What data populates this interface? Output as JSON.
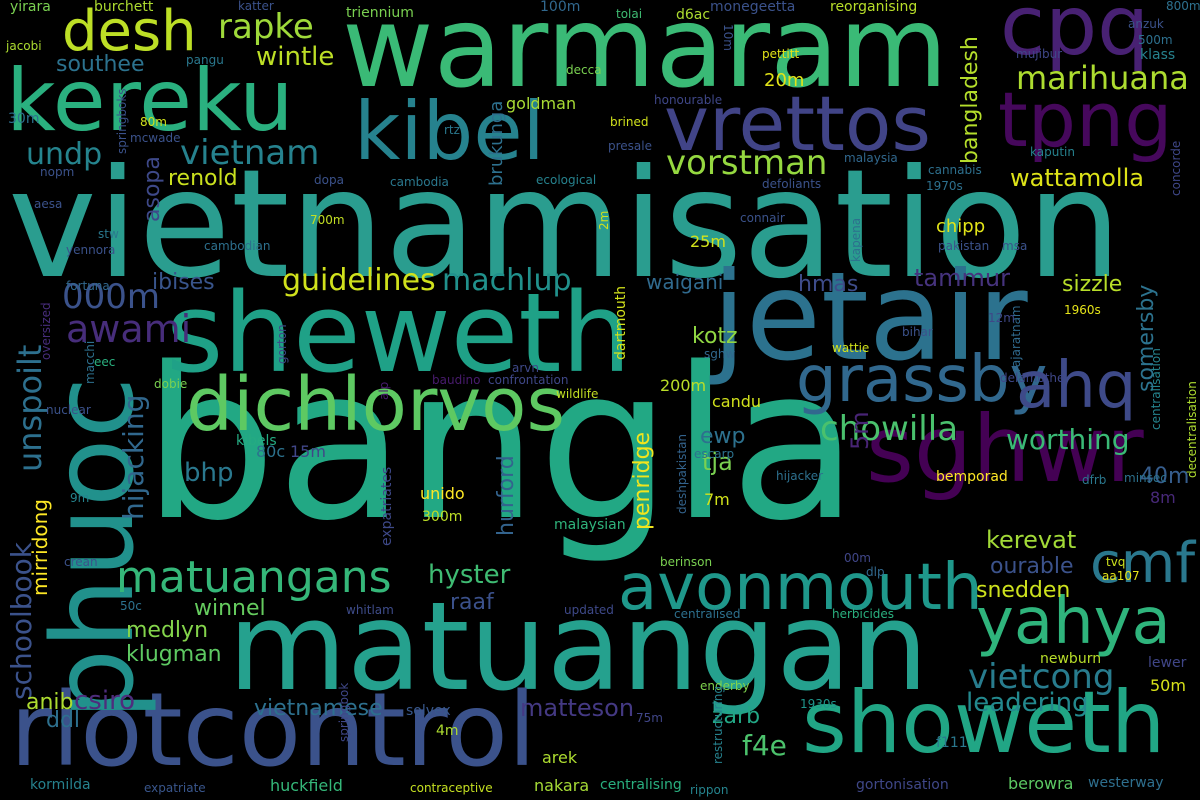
{
  "words": [
    {
      "text": "bangla",
      "color": "#22a884"
    },
    {
      "text": "vietnamisation",
      "color": "#2a9d8f"
    },
    {
      "text": "matuangan",
      "color": "#25a18e"
    },
    {
      "text": "warmaram",
      "color": "#3aba76"
    },
    {
      "text": "sheweth",
      "color": "#1fa187"
    },
    {
      "text": "jetair",
      "color": "#2c728e"
    },
    {
      "text": "riotcontrol",
      "color": "#3b528b"
    },
    {
      "text": "phuoc",
      "color": "#21918c"
    },
    {
      "text": "kereku",
      "color": "#2ab07f"
    },
    {
      "text": "showeth",
      "color": "#21a685"
    },
    {
      "text": "dichlorvos",
      "color": "#5ec962"
    },
    {
      "text": "sghwr",
      "color": "#440154"
    },
    {
      "text": "cpq",
      "color": "#482173"
    },
    {
      "text": "tpng",
      "color": "#46085c"
    },
    {
      "text": "kibel",
      "color": "#26828e"
    },
    {
      "text": "vrettos",
      "color": "#414487"
    },
    {
      "text": "yahya",
      "color": "#2fb47c"
    },
    {
      "text": "avonmouth",
      "color": "#1f988b"
    },
    {
      "text": "grassby",
      "color": "#31688e"
    },
    {
      "text": "ahq",
      "color": "#3e4a89"
    },
    {
      "text": "desh",
      "color": "#bddf26"
    },
    {
      "text": "cmf",
      "color": "#2a788e"
    },
    {
      "text": "matuangans",
      "color": "#35b779"
    },
    {
      "text": "unspoilt",
      "color": "#2d708e"
    },
    {
      "text": "schoolbook",
      "color": "#3b528b"
    },
    {
      "text": "hijacking",
      "color": "#31688e"
    },
    {
      "text": "vietnam",
      "color": "#26828e"
    },
    {
      "text": "vorstman",
      "color": "#95d840"
    },
    {
      "text": "rapke",
      "color": "#9fda3a"
    },
    {
      "text": "marihuana",
      "color": "#addc30"
    },
    {
      "text": "guidelines",
      "color": "#d0e11c"
    },
    {
      "text": "machlup",
      "color": "#21918c"
    },
    {
      "text": "000m",
      "color": "#3b528b"
    },
    {
      "text": "awami",
      "color": "#472d7b"
    },
    {
      "text": "chowilla",
      "color": "#4ac16d"
    },
    {
      "text": "worthing",
      "color": "#3aba76"
    },
    {
      "text": "vietcong",
      "color": "#287c8e"
    },
    {
      "text": "undp",
      "color": "#25848e"
    },
    {
      "text": "wintle",
      "color": "#bddf26"
    },
    {
      "text": "southee",
      "color": "#2c728e"
    },
    {
      "text": "wattamolla",
      "color": "#dde318"
    },
    {
      "text": "bangladesh",
      "color": "#b5de2b"
    },
    {
      "text": "renold",
      "color": "#cae11f"
    },
    {
      "text": "medlyn",
      "color": "#84d44b"
    },
    {
      "text": "klugman",
      "color": "#5ec962"
    },
    {
      "text": "winnel",
      "color": "#65cb5e"
    },
    {
      "text": "hyster",
      "color": "#3fbc73"
    },
    {
      "text": "kerevat",
      "color": "#a2da37"
    },
    {
      "text": "snedden",
      "color": "#cde11d"
    },
    {
      "text": "ourable",
      "color": "#3b528b"
    },
    {
      "text": "matteson",
      "color": "#443983"
    },
    {
      "text": "vietnamese",
      "color": "#2d708e"
    },
    {
      "text": "leadering",
      "color": "#23898e"
    },
    {
      "text": "somersby",
      "color": "#2c728e"
    },
    {
      "text": "penridge",
      "color": "#f1e51d"
    },
    {
      "text": "hurford",
      "color": "#33638d"
    },
    {
      "text": "mirridong",
      "color": "#fde725"
    },
    {
      "text": "sizzle",
      "color": "#b8de29"
    },
    {
      "text": "tammur",
      "color": "#46337e"
    },
    {
      "text": "waigani",
      "color": "#306a8e"
    },
    {
      "text": "ibises",
      "color": "#39558c"
    },
    {
      "text": "hmas",
      "color": "#3e4c8a"
    },
    {
      "text": "kotz",
      "color": "#90d743"
    },
    {
      "text": "ewp",
      "color": "#2d718e"
    },
    {
      "text": "tja",
      "color": "#7ad151"
    },
    {
      "text": "bhp",
      "color": "#2a788e"
    },
    {
      "text": "zarb",
      "color": "#22a785"
    },
    {
      "text": "f4e",
      "color": "#4cc26c"
    },
    {
      "text": "ddl",
      "color": "#2d708e"
    },
    {
      "text": "anib",
      "color": "#addc30"
    },
    {
      "text": "csiro",
      "color": "#4e2d7d"
    },
    {
      "text": "raaf",
      "color": "#3b518b"
    },
    {
      "text": "brukunga",
      "color": "#2d708e"
    },
    {
      "text": "asopa",
      "color": "#3e4989"
    },
    {
      "text": "5m",
      "color": "#482475"
    },
    {
      "text": "40m",
      "color": "#365d8d"
    },
    {
      "text": "8m",
      "color": "#482979"
    },
    {
      "text": "50m",
      "color": "#d8e219"
    },
    {
      "text": "20m",
      "color": "#e2e418"
    },
    {
      "text": "25m",
      "color": "#d2e21b"
    },
    {
      "text": "7m",
      "color": "#d2e21b"
    },
    {
      "text": "200m",
      "color": "#bade28"
    },
    {
      "text": "candu",
      "color": "#d0e11c"
    },
    {
      "text": "chipp",
      "color": "#e2e418"
    },
    {
      "text": "goldman",
      "color": "#a8db34"
    },
    {
      "text": "berowra",
      "color": "#5cc863"
    },
    {
      "text": "westerway",
      "color": "#2e6f8e"
    },
    {
      "text": "huckfield",
      "color": "#35b779"
    },
    {
      "text": "nakara",
      "color": "#a5db36"
    },
    {
      "text": "kormilda",
      "color": "#26828e"
    },
    {
      "text": "arek",
      "color": "#addc30"
    },
    {
      "text": "solvex",
      "color": "#38588c"
    },
    {
      "text": "gortonisation",
      "color": "#3f4788"
    },
    {
      "text": "f111",
      "color": "#2a788e"
    },
    {
      "text": "lewer",
      "color": "#404688"
    },
    {
      "text": "newburn",
      "color": "#b8de29"
    },
    {
      "text": "1930s",
      "color": "#1f958b"
    },
    {
      "text": "enderby",
      "color": "#7fd34e"
    },
    {
      "text": "contraceptive",
      "color": "#c5e021"
    },
    {
      "text": "centralising",
      "color": "#29af7f"
    },
    {
      "text": "expatriate",
      "color": "#39568c"
    },
    {
      "text": "rippon",
      "color": "#25848e"
    },
    {
      "text": "75m",
      "color": "#404688"
    },
    {
      "text": "restructuring",
      "color": "#26828e"
    },
    {
      "text": "springbok",
      "color": "#3f4788"
    },
    {
      "text": "herbicides",
      "color": "#2ab07f"
    },
    {
      "text": "centralised",
      "color": "#2d708e"
    },
    {
      "text": "updated",
      "color": "#3e4989"
    },
    {
      "text": "whitlam",
      "color": "#3e4c8a"
    },
    {
      "text": "50c",
      "color": "#2c728e"
    },
    {
      "text": "crean",
      "color": "#3b528b"
    },
    {
      "text": "berinson",
      "color": "#7ad151"
    },
    {
      "text": "00m",
      "color": "#404688"
    },
    {
      "text": "dlp",
      "color": "#31688e"
    },
    {
      "text": "tvq",
      "color": "#cde11d"
    },
    {
      "text": "aa107",
      "color": "#e5e419"
    },
    {
      "text": "malaysian",
      "color": "#2fb47c"
    },
    {
      "text": "deshpakistan",
      "color": "#33638d"
    },
    {
      "text": "unido",
      "color": "#fde725"
    },
    {
      "text": "300m",
      "color": "#bddf26"
    },
    {
      "text": "expatriates",
      "color": "#3e4989"
    },
    {
      "text": "9m",
      "color": "#25848e"
    },
    {
      "text": "80c",
      "color": "#2c728e"
    },
    {
      "text": "15m",
      "color": "#404688"
    },
    {
      "text": "kibels",
      "color": "#25ab82"
    },
    {
      "text": "escarp",
      "color": "#2c728e"
    },
    {
      "text": "hijacker",
      "color": "#2d708e"
    },
    {
      "text": "bemporad",
      "color": "#fde725"
    },
    {
      "text": "minsec",
      "color": "#2c728e"
    },
    {
      "text": "dfrb",
      "color": "#2a788e"
    },
    {
      "text": "decentralisation",
      "color": "#addc30"
    },
    {
      "text": "centralisation",
      "color": "#25848e"
    },
    {
      "text": "delamothe",
      "color": "#3f4788"
    },
    {
      "text": "rajaratnam",
      "color": "#306a8e"
    },
    {
      "text": "1960s",
      "color": "#e5e419"
    },
    {
      "text": "12m",
      "color": "#3f4788"
    },
    {
      "text": "bihar",
      "color": "#3b528b"
    },
    {
      "text": "wattie",
      "color": "#d2e21b"
    },
    {
      "text": "sghw",
      "color": "#31688e"
    },
    {
      "text": "dartmouth",
      "color": "#d2e21b"
    },
    {
      "text": "wildlife",
      "color": "#c2df23"
    },
    {
      "text": "confrontation",
      "color": "#3f4788"
    },
    {
      "text": "arvn",
      "color": "#3e4989"
    },
    {
      "text": "baudino",
      "color": "#481b6d"
    },
    {
      "text": "alp",
      "color": "#481b6d"
    },
    {
      "text": "gorton",
      "color": "#3e4989"
    },
    {
      "text": "nuclear",
      "color": "#3b528b"
    },
    {
      "text": "dobie",
      "color": "#7ad151"
    },
    {
      "text": "macchi",
      "color": "#2d708e"
    },
    {
      "text": "eec",
      "color": "#2ab07f"
    },
    {
      "text": "oversized",
      "color": "#472d7b"
    },
    {
      "text": "fortuna",
      "color": "#31688e"
    },
    {
      "text": "yennora",
      "color": "#3b528b"
    },
    {
      "text": "stw",
      "color": "#2a788e"
    },
    {
      "text": "aesa",
      "color": "#3b528b"
    },
    {
      "text": "cambodian",
      "color": "#2d708e"
    },
    {
      "text": "700m",
      "color": "#c2df23"
    },
    {
      "text": "2m",
      "color": "#d0e11c"
    },
    {
      "text": "connair",
      "color": "#3b528b"
    },
    {
      "text": "kapena",
      "color": "#2d708e"
    },
    {
      "text": "pakistan",
      "color": "#3b528b"
    },
    {
      "text": "msa",
      "color": "#3b528b"
    },
    {
      "text": "1970s",
      "color": "#2d708e"
    },
    {
      "text": "cannabis",
      "color": "#2d708e"
    },
    {
      "text": "malaysia",
      "color": "#31688e"
    },
    {
      "text": "defoliants",
      "color": "#3b528b"
    },
    {
      "text": "ecological",
      "color": "#26828e"
    },
    {
      "text": "cambodia",
      "color": "#2a788e"
    },
    {
      "text": "dopa",
      "color": "#3b528b"
    },
    {
      "text": "nopm",
      "color": "#3b528b"
    },
    {
      "text": "presale",
      "color": "#3b528b"
    },
    {
      "text": "brined",
      "color": "#d0e11c"
    },
    {
      "text": "rtz",
      "color": "#2a788e"
    },
    {
      "text": "honourable",
      "color": "#3f4788"
    },
    {
      "text": "kaputin",
      "color": "#26828e"
    },
    {
      "text": "concorde",
      "color": "#3f4788"
    },
    {
      "text": "klass",
      "color": "#26828e"
    },
    {
      "text": "500m",
      "color": "#2d708e"
    },
    {
      "text": "anzuk",
      "color": "#3b528b"
    },
    {
      "text": "800m",
      "color": "#2d708e"
    },
    {
      "text": "mujibur",
      "color": "#3f4788"
    },
    {
      "text": "pettitt",
      "color": "#e2e418"
    },
    {
      "text": "reorganising",
      "color": "#b8de29"
    },
    {
      "text": "monegeetta",
      "color": "#3b528b"
    },
    {
      "text": "10m",
      "color": "#3b528b"
    },
    {
      "text": "d6ac",
      "color": "#addc30"
    },
    {
      "text": "tolai",
      "color": "#3fbc73"
    },
    {
      "text": "100m",
      "color": "#31688e"
    },
    {
      "text": "triennium",
      "color": "#7ad151"
    },
    {
      "text": "katter",
      "color": "#3b528b"
    },
    {
      "text": "burchett",
      "color": "#addc30"
    },
    {
      "text": "yirara",
      "color": "#7ad151"
    },
    {
      "text": "jacobi",
      "color": "#addc30"
    },
    {
      "text": "pangu",
      "color": "#2a788e"
    },
    {
      "text": "30m",
      "color": "#2d708e"
    },
    {
      "text": "80m",
      "color": "#d0e11c"
    },
    {
      "text": "mcwade",
      "color": "#3b528b"
    },
    {
      "text": "springboks",
      "color": "#3b528b"
    },
    {
      "text": "decca",
      "color": "#7ad151"
    },
    {
      "text": "4m",
      "color": "#addc30"
    }
  ]
}
